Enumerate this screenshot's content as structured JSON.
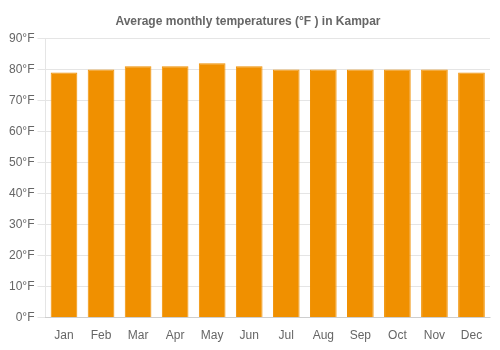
{
  "chart_data": {
    "type": "bar",
    "title": "Average monthly temperatures (°F ) in Kampar",
    "categories": [
      "Jan",
      "Feb",
      "Mar",
      "Apr",
      "May",
      "Jun",
      "Jul",
      "Aug",
      "Sep",
      "Oct",
      "Nov",
      "Dec"
    ],
    "values": [
      79,
      80,
      81,
      81,
      82,
      81,
      80,
      80,
      80,
      80,
      80,
      79
    ],
    "color": "#F09000",
    "ylim": [
      0,
      90
    ],
    "yticks": [
      {
        "value": 0,
        "label": "0°F"
      },
      {
        "value": 10,
        "label": "10°F"
      },
      {
        "value": 20,
        "label": "20°F"
      },
      {
        "value": 30,
        "label": "30°F"
      },
      {
        "value": 40,
        "label": "40°F"
      },
      {
        "value": 50,
        "label": "50°F"
      },
      {
        "value": 60,
        "label": "60°F"
      },
      {
        "value": 70,
        "label": "70°F"
      },
      {
        "value": 80,
        "label": "80°F"
      },
      {
        "value": 90,
        "label": "90°F"
      }
    ],
    "grid": true
  }
}
